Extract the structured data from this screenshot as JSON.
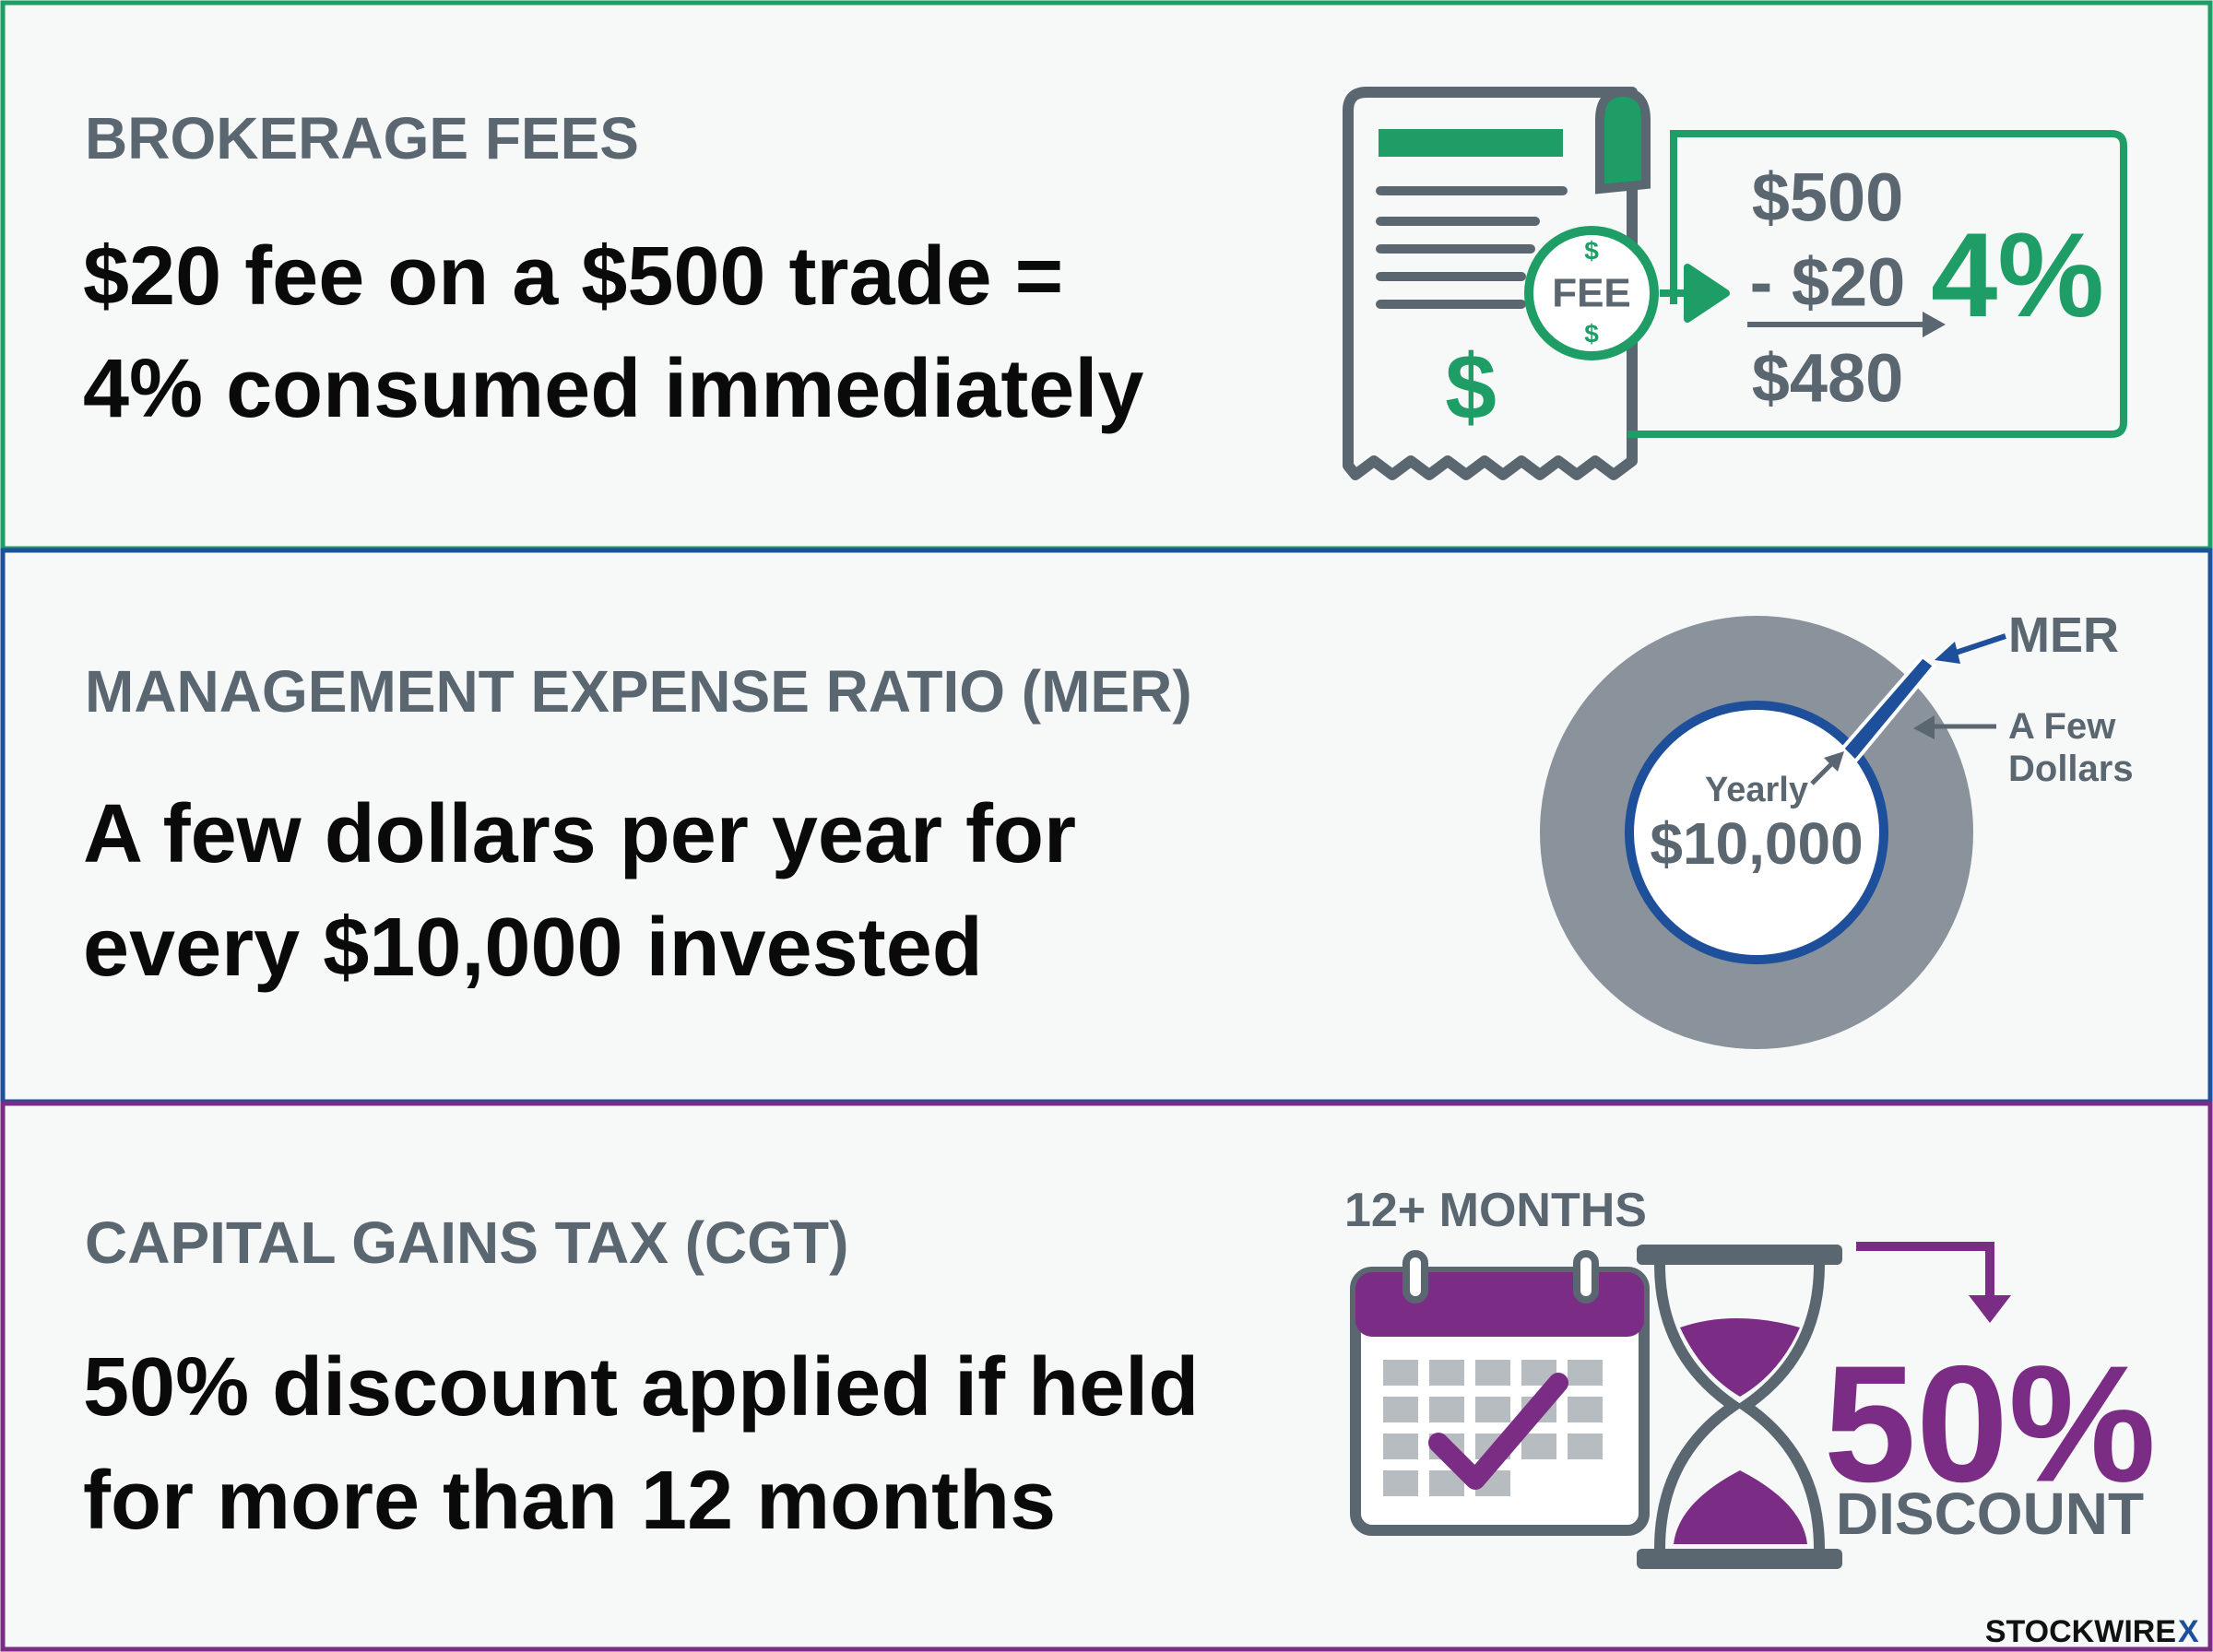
{
  "sections": [
    {
      "heading": "BROKERAGE FEES",
      "body": [
        "$20 fee on a $500 trade =",
        "4% consumed immediately"
      ],
      "graphic": {
        "big_symbol": "$",
        "fee_label": "FEE",
        "fee_symbols": [
          "$",
          "$"
        ],
        "lines": [
          "$500",
          "- $20",
          "$480"
        ],
        "result": "4%"
      }
    },
    {
      "heading": "MANAGEMENT EXPENSE RATIO (MER)",
      "body": [
        "A few dollars per year for",
        "every $10,000 invested"
      ],
      "graphic": {
        "center_top": "Yearly",
        "center_value": "$10,000",
        "slice_label": "MER",
        "callout": [
          "A Few",
          "Dollars"
        ]
      }
    },
    {
      "heading": "CAPITAL GAINS TAX (CGT)",
      "body": [
        "50% discount applied if held",
        "for more than 12 months"
      ],
      "graphic": {
        "period": "12+ MONTHS",
        "result": "50%",
        "result_label": "DISCOUNT"
      }
    }
  ],
  "footer": {
    "brand": "STOCKWIRE",
    "mark": "X"
  }
}
